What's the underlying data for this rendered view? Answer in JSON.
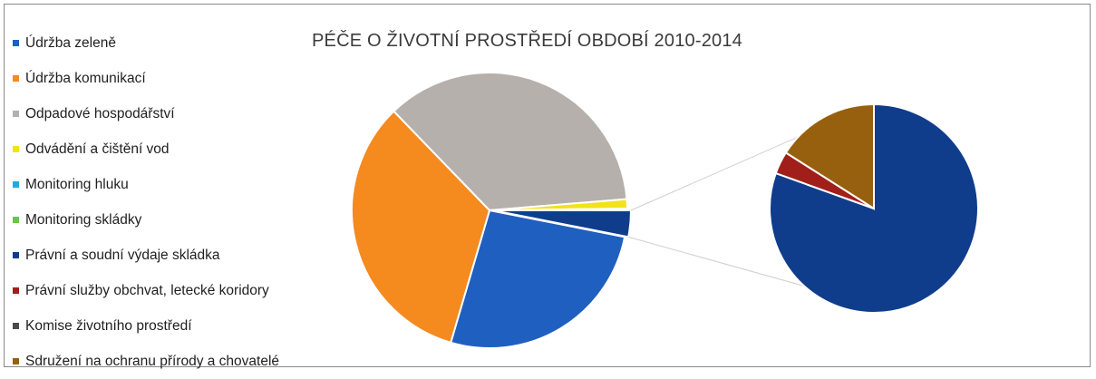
{
  "chart_data": {
    "type": "pie",
    "title": "PÉČE O ŽIVOTNÍ PROSTŘEDÍ OBDOBÍ 2010-2014",
    "legend_position": "left",
    "categories": [
      "Údržba zeleně",
      "Údržba komunikací",
      "Odpadové hospodářství",
      "Odvádění a čištění vod",
      "Monitoring hluku",
      "Monitoring skládky",
      "Právní a soudní výdaje skládka",
      "Právní služby obchvat, letecké koridory",
      "Komise životního prostředí",
      "Sdružení na ochranu přírody a chovatelé"
    ],
    "colors": [
      "#1f5fbf",
      "#f58a1f",
      "#b5b0ab",
      "#f2e21a",
      "#2aa6e0",
      "#6cc24a",
      "#0f3d8c",
      "#a01f1a",
      "#4a4a4a",
      "#96600e"
    ],
    "values": [
      26.5,
      33.3,
      36.0,
      1.1,
      0.1,
      0.1,
      2.5,
      0.1,
      0.0,
      0.5
    ],
    "secondary_pie": {
      "categories": [
        "Právní a soudní výdaje skládka",
        "Právní služby obchvat, letecké koridory",
        "Sdružení na ochranu přírody a chovatelé"
      ],
      "values": [
        80.5,
        3.5,
        16.0
      ]
    }
  }
}
